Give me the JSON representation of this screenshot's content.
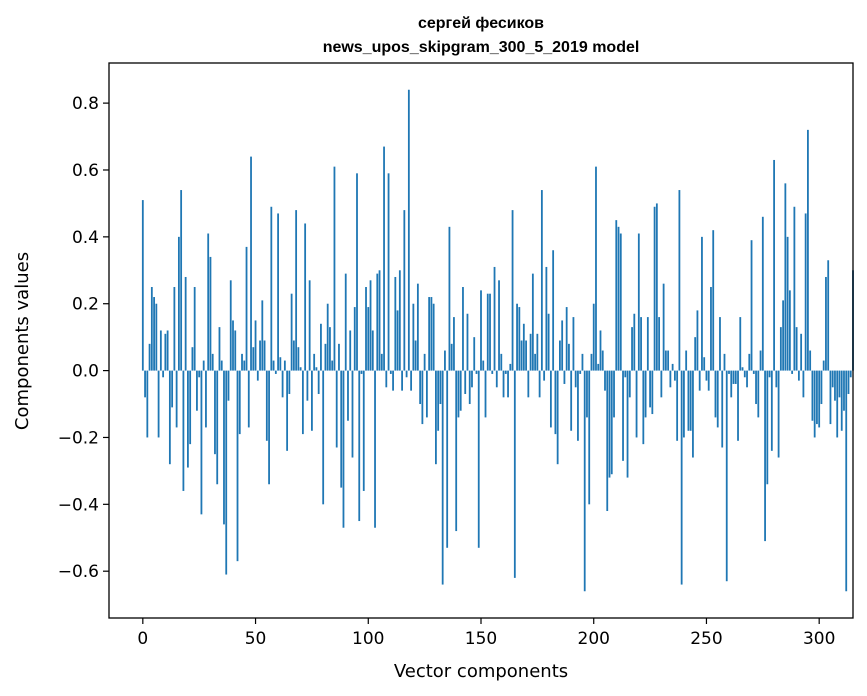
{
  "chart_data": {
    "type": "bar",
    "title_line1": "сергей фесиков",
    "title_line2": "news_upos_skipgram_300_5_2019 model",
    "xlabel": "Vector components",
    "ylabel": "Components values",
    "xlim": [
      -15,
      315
    ],
    "ylim": [
      -0.74,
      0.92
    ],
    "xticks": [
      0,
      50,
      100,
      150,
      200,
      250,
      300
    ],
    "yticks": [
      -0.6,
      -0.4,
      -0.2,
      0.0,
      0.2,
      0.4,
      0.6,
      0.8
    ],
    "ytick_labels": [
      "−0.6",
      "−0.4",
      "−0.2",
      "0.0",
      "0.2",
      "0.4",
      "0.6",
      "0.8"
    ],
    "bar_color": "#1f77b4",
    "values": [
      0.51,
      -0.08,
      -0.2,
      0.08,
      0.25,
      0.22,
      0.2,
      -0.2,
      0.12,
      -0.02,
      0.11,
      0.12,
      -0.28,
      -0.11,
      0.25,
      -0.17,
      0.4,
      0.54,
      -0.36,
      0.28,
      -0.29,
      -0.22,
      0.07,
      0.25,
      -0.12,
      -0.02,
      -0.43,
      0.03,
      -0.17,
      0.41,
      0.34,
      0.05,
      -0.25,
      -0.34,
      0.13,
      0.03,
      -0.46,
      -0.61,
      -0.09,
      0.27,
      0.15,
      0.12,
      -0.57,
      -0.19,
      0.05,
      0.03,
      0.37,
      -0.17,
      0.64,
      0.07,
      0.15,
      -0.03,
      0.09,
      0.21,
      0.09,
      -0.21,
      -0.34,
      0.49,
      0.03,
      -0.01,
      0.47,
      0.04,
      -0.08,
      0.03,
      -0.24,
      -0.07,
      0.23,
      0.09,
      0.48,
      0.07,
      0.01,
      -0.19,
      0.44,
      -0.09,
      0.27,
      -0.18,
      0.05,
      0.01,
      -0.07,
      0.14,
      -0.4,
      0.08,
      0.2,
      0.13,
      0.03,
      0.61,
      -0.23,
      0.08,
      -0.35,
      -0.47,
      0.29,
      -0.15,
      0.12,
      -0.26,
      0.19,
      0.59,
      -0.45,
      -0.01,
      -0.36,
      0.25,
      0.19,
      0.27,
      0.12,
      -0.47,
      0.29,
      0.3,
      0.05,
      0.67,
      -0.05,
      0.59,
      -0.01,
      -0.06,
      0.28,
      0.18,
      0.3,
      -0.06,
      0.48,
      -0.02,
      0.84,
      -0.06,
      0.2,
      0.09,
      0.26,
      -0.1,
      -0.16,
      0.05,
      -0.14,
      0.22,
      0.22,
      0.2,
      -0.28,
      -0.18,
      -0.1,
      -0.64,
      0.06,
      -0.53,
      0.43,
      0.08,
      0.16,
      -0.48,
      -0.14,
      -0.12,
      0.25,
      -0.07,
      0.17,
      -0.1,
      -0.05,
      0.1,
      -0.01,
      -0.53,
      0.24,
      0.03,
      -0.14,
      0.23,
      0.23,
      -0.01,
      0.31,
      -0.05,
      0.27,
      0.05,
      -0.08,
      -0.01,
      -0.08,
      0.02,
      0.48,
      -0.62,
      0.2,
      0.19,
      0.09,
      0.14,
      0.09,
      -0.08,
      0.11,
      0.29,
      0.05,
      0.11,
      -0.08,
      0.54,
      -0.03,
      0.31,
      0.17,
      -0.17,
      0.36,
      -0.19,
      -0.28,
      0.09,
      0.15,
      -0.04,
      0.19,
      0.08,
      -0.18,
      0.16,
      -0.05,
      -0.21,
      -0.01,
      0.05,
      -0.66,
      -0.14,
      -0.4,
      0.05,
      0.2,
      0.61,
      0.02,
      0.12,
      0.06,
      -0.06,
      -0.42,
      -0.32,
      -0.31,
      -0.14,
      0.45,
      0.43,
      0.41,
      -0.27,
      -0.02,
      -0.32,
      -0.08,
      0.13,
      0.17,
      -0.2,
      0.41,
      0.16,
      -0.22,
      -0.14,
      0.16,
      -0.11,
      -0.13,
      0.49,
      0.5,
      0.16,
      -0.08,
      0.26,
      0.06,
      0.06,
      -0.05,
      0.02,
      -0.03,
      -0.21,
      0.54,
      -0.64,
      -0.2,
      0.06,
      -0.18,
      -0.18,
      -0.26,
      0.1,
      0.18,
      -0.06,
      0.4,
      0.04,
      -0.03,
      -0.06,
      0.25,
      0.42,
      -0.14,
      -0.17,
      0.16,
      -0.23,
      0.05,
      -0.63,
      -0.01,
      -0.08,
      -0.04,
      -0.04,
      -0.21,
      0.16,
      0.01,
      -0.02,
      -0.05,
      0.05,
      0.39,
      -0.01,
      -0.1,
      -0.14,
      0.06,
      0.46,
      -0.51,
      -0.34,
      -0.02,
      -0.24,
      0.63,
      -0.05,
      -0.26,
      0.13,
      0.21,
      0.56,
      0.4,
      0.24,
      -0.01,
      0.49,
      0.13,
      -0.03,
      0.11,
      -0.08,
      0.47,
      0.72,
      0.06,
      -0.15,
      -0.2,
      -0.16,
      -0.17,
      -0.1,
      0.03,
      0.28,
      0.33,
      -0.16,
      -0.05,
      -0.09,
      -0.2,
      -0.08,
      -0.18,
      -0.12,
      -0.66,
      -0.07,
      -0.02,
      0.3
    ]
  }
}
